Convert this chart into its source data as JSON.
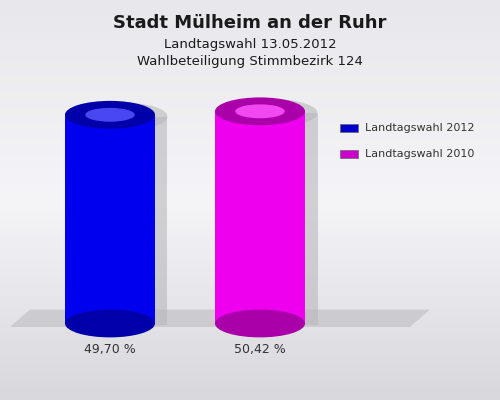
{
  "title": "Stadt Mülheim an der Ruhr",
  "subtitle1": "Landtagswahl 13.05.2012",
  "subtitle2": "Wahlbeteiligung Stimmbezirk 124",
  "values": [
    49.7,
    50.42
  ],
  "labels": [
    "49,70 %",
    "50,42 %"
  ],
  "bar_colors_main": [
    "#0000ee",
    "#ee00ee"
  ],
  "bar_colors_dark": [
    "#0000aa",
    "#aa00aa"
  ],
  "bar_colors_light": [
    "#5555ff",
    "#ff55ff"
  ],
  "legend_labels": [
    "Landtagswahl 2012",
    "Landtagswahl 2010"
  ],
  "legend_colors": [
    "#0000cc",
    "#cc00cc"
  ],
  "bg_color_top": "#e8e8ec",
  "bg_color_mid": "#f5f5f8",
  "bg_color_bot": "#dcdce0",
  "platform_color": "#c8c8cc",
  "shadow_color": "#c0c0c4",
  "title_fontsize": 13,
  "subtitle_fontsize": 9.5,
  "label_fontsize": 9,
  "legend_fontsize": 8
}
